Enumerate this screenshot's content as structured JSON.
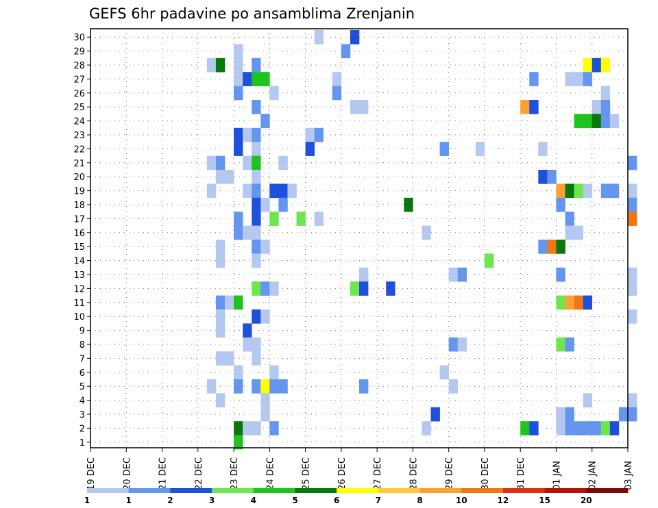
{
  "chart_data": {
    "type": "heatmap",
    "title": "GEFS 6hr padavine po ansamblima Zrenjanin",
    "y_ticks": [
      "1",
      "2",
      "3",
      "4",
      "5",
      "6",
      "7",
      "8",
      "9",
      "10",
      "11",
      "12",
      "13",
      "14",
      "15",
      "16",
      "17",
      "18",
      "19",
      "20",
      "21",
      "22",
      "23",
      "24",
      "25",
      "26",
      "27",
      "28",
      "29",
      "30"
    ],
    "x_ticks": [
      "19 DEC",
      "20 DEC",
      "21 DEC",
      "22 DEC",
      "23 DEC",
      "24 DEC",
      "25 DEC",
      "26 DEC",
      "27 DEC",
      "28 DEC",
      "29 DEC",
      "30 DEC",
      "31 DEC",
      "01 JAN",
      "02 JAN",
      "03 JAN"
    ],
    "grid": true,
    "legend": {
      "position": "bottom",
      "bins": [
        {
          "color": "#b4c8f0",
          "label": "1"
        },
        {
          "color": "#6496f0",
          "label": "2"
        },
        {
          "color": "#1e50dc",
          "label": "3"
        },
        {
          "color": "#6ee650",
          "label": "4"
        },
        {
          "color": "#1ec31e",
          "label": "5"
        },
        {
          "color": "#0a780a",
          "label": "6"
        },
        {
          "color": "#ffff00",
          "label": "7"
        },
        {
          "color": "#ffc83c",
          "label": "8"
        },
        {
          "color": "#ffa032",
          "label": "10"
        },
        {
          "color": "#f07814",
          "label": "12"
        },
        {
          "color": "#e13214",
          "label": "15"
        },
        {
          "color": "#b4140a",
          "label": "20"
        },
        {
          "color": "#780a0a",
          "label": ""
        }
      ]
    },
    "cells": [
      [
        6.25,
        30,
        1
      ],
      [
        7.25,
        30,
        3
      ],
      [
        4.0,
        29,
        1
      ],
      [
        7.0,
        29,
        2
      ],
      [
        3.25,
        28,
        1
      ],
      [
        3.5,
        28,
        6
      ],
      [
        4.0,
        28,
        1
      ],
      [
        4.5,
        28,
        2
      ],
      [
        13.75,
        28,
        7
      ],
      [
        14.0,
        28,
        3
      ],
      [
        14.25,
        28,
        7
      ],
      [
        4.0,
        27,
        1
      ],
      [
        4.25,
        27,
        3
      ],
      [
        4.5,
        27,
        5
      ],
      [
        4.75,
        27,
        5
      ],
      [
        6.75,
        27,
        1
      ],
      [
        12.25,
        27,
        2
      ],
      [
        13.25,
        27,
        1
      ],
      [
        13.5,
        27,
        1
      ],
      [
        13.75,
        27,
        2
      ],
      [
        4.0,
        26,
        2
      ],
      [
        5.0,
        26,
        1
      ],
      [
        6.75,
        26,
        2
      ],
      [
        14.25,
        26,
        1
      ],
      [
        4.5,
        25,
        2
      ],
      [
        7.25,
        25,
        1
      ],
      [
        7.5,
        25,
        1
      ],
      [
        12.0,
        25,
        9
      ],
      [
        12.25,
        25,
        3
      ],
      [
        14.0,
        25,
        1
      ],
      [
        14.25,
        25,
        2
      ],
      [
        4.75,
        24,
        2
      ],
      [
        13.5,
        24,
        5
      ],
      [
        13.75,
        24,
        5
      ],
      [
        14.0,
        24,
        6
      ],
      [
        14.25,
        24,
        2
      ],
      [
        14.5,
        24,
        1
      ],
      [
        4.0,
        23,
        3
      ],
      [
        4.25,
        23,
        1
      ],
      [
        4.5,
        23,
        2
      ],
      [
        6.0,
        23,
        1
      ],
      [
        6.25,
        23,
        2
      ],
      [
        4.0,
        22,
        3
      ],
      [
        4.5,
        22,
        1
      ],
      [
        6.0,
        22,
        3
      ],
      [
        9.75,
        22,
        2
      ],
      [
        10.75,
        22,
        1
      ],
      [
        12.5,
        22,
        1
      ],
      [
        3.25,
        21,
        1
      ],
      [
        3.5,
        21,
        2
      ],
      [
        4.25,
        21,
        1
      ],
      [
        4.5,
        21,
        5
      ],
      [
        5.25,
        21,
        1
      ],
      [
        15.0,
        21,
        2
      ],
      [
        3.5,
        20,
        1
      ],
      [
        3.75,
        20,
        1
      ],
      [
        4.5,
        20,
        1
      ],
      [
        12.5,
        20,
        3
      ],
      [
        12.75,
        20,
        2
      ],
      [
        3.25,
        19,
        1
      ],
      [
        4.25,
        19,
        1
      ],
      [
        4.5,
        19,
        2
      ],
      [
        5.0,
        19,
        3
      ],
      [
        5.25,
        19,
        3
      ],
      [
        5.5,
        19,
        1
      ],
      [
        13.0,
        19,
        9
      ],
      [
        13.25,
        19,
        6
      ],
      [
        13.5,
        19,
        4
      ],
      [
        13.75,
        19,
        1
      ],
      [
        14.25,
        19,
        2
      ],
      [
        14.5,
        19,
        2
      ],
      [
        15.0,
        19,
        1
      ],
      [
        4.5,
        18,
        3
      ],
      [
        4.75,
        18,
        1
      ],
      [
        5.25,
        18,
        2
      ],
      [
        8.75,
        18,
        6
      ],
      [
        13.0,
        18,
        2
      ],
      [
        15.0,
        18,
        2
      ],
      [
        4.0,
        17,
        2
      ],
      [
        4.5,
        17,
        3
      ],
      [
        5.0,
        17,
        4
      ],
      [
        5.75,
        17,
        4
      ],
      [
        6.25,
        17,
        1
      ],
      [
        13.25,
        17,
        2
      ],
      [
        15.0,
        17,
        10
      ],
      [
        4.0,
        16,
        2
      ],
      [
        4.25,
        16,
        1
      ],
      [
        4.5,
        16,
        1
      ],
      [
        9.25,
        16,
        1
      ],
      [
        13.25,
        16,
        1
      ],
      [
        13.5,
        16,
        1
      ],
      [
        3.5,
        15,
        1
      ],
      [
        4.5,
        15,
        2
      ],
      [
        4.75,
        15,
        1
      ],
      [
        12.5,
        15,
        2
      ],
      [
        12.75,
        15,
        10
      ],
      [
        13.0,
        15,
        6
      ],
      [
        3.5,
        14,
        1
      ],
      [
        4.5,
        14,
        1
      ],
      [
        11.0,
        14,
        4
      ],
      [
        7.5,
        13,
        1
      ],
      [
        10.0,
        13,
        1
      ],
      [
        10.25,
        13,
        2
      ],
      [
        13.0,
        13,
        2
      ],
      [
        15.0,
        13,
        1
      ],
      [
        4.5,
        12,
        4
      ],
      [
        4.75,
        12,
        2
      ],
      [
        5.0,
        12,
        1
      ],
      [
        7.25,
        12,
        4
      ],
      [
        7.5,
        12,
        3
      ],
      [
        8.25,
        12,
        3
      ],
      [
        15.0,
        12,
        1
      ],
      [
        3.5,
        11,
        2
      ],
      [
        3.75,
        11,
        1
      ],
      [
        4.0,
        11,
        5
      ],
      [
        13.0,
        11,
        4
      ],
      [
        13.25,
        11,
        9
      ],
      [
        13.5,
        11,
        10
      ],
      [
        13.75,
        11,
        3
      ],
      [
        3.5,
        10,
        1
      ],
      [
        4.5,
        10,
        3
      ],
      [
        4.75,
        10,
        1
      ],
      [
        15.0,
        10,
        1
      ],
      [
        3.5,
        9,
        1
      ],
      [
        4.25,
        9,
        3
      ],
      [
        4.25,
        8,
        1
      ],
      [
        4.5,
        8,
        1
      ],
      [
        10.0,
        8,
        2
      ],
      [
        10.25,
        8,
        1
      ],
      [
        13.0,
        8,
        4
      ],
      [
        13.25,
        8,
        2
      ],
      [
        3.5,
        7,
        1
      ],
      [
        3.75,
        7,
        1
      ],
      [
        4.5,
        7,
        1
      ],
      [
        4.0,
        6,
        1
      ],
      [
        5.0,
        6,
        1
      ],
      [
        9.75,
        6,
        1
      ],
      [
        3.25,
        5,
        1
      ],
      [
        4.0,
        5,
        2
      ],
      [
        4.5,
        5,
        2
      ],
      [
        4.75,
        5,
        7
      ],
      [
        5.0,
        5,
        2
      ],
      [
        5.25,
        5,
        2
      ],
      [
        7.5,
        5,
        2
      ],
      [
        10.0,
        5,
        1
      ],
      [
        3.5,
        4,
        1
      ],
      [
        4.75,
        4,
        1
      ],
      [
        13.75,
        4,
        1
      ],
      [
        15.0,
        4,
        1
      ],
      [
        4.75,
        3,
        1
      ],
      [
        9.5,
        3,
        3
      ],
      [
        13.0,
        3,
        1
      ],
      [
        13.25,
        3,
        2
      ],
      [
        14.75,
        3,
        2
      ],
      [
        15.0,
        3,
        2
      ],
      [
        4.0,
        2,
        6
      ],
      [
        4.25,
        2,
        1
      ],
      [
        4.5,
        2,
        1
      ],
      [
        5.0,
        2,
        2
      ],
      [
        9.25,
        2,
        1
      ],
      [
        12.0,
        2,
        5
      ],
      [
        12.25,
        2,
        3
      ],
      [
        13.0,
        2,
        1
      ],
      [
        13.25,
        2,
        2
      ],
      [
        13.5,
        2,
        2
      ],
      [
        13.75,
        2,
        2
      ],
      [
        14.0,
        2,
        2
      ],
      [
        14.25,
        2,
        4
      ],
      [
        14.5,
        2,
        3
      ],
      [
        4.0,
        1,
        5
      ]
    ]
  }
}
